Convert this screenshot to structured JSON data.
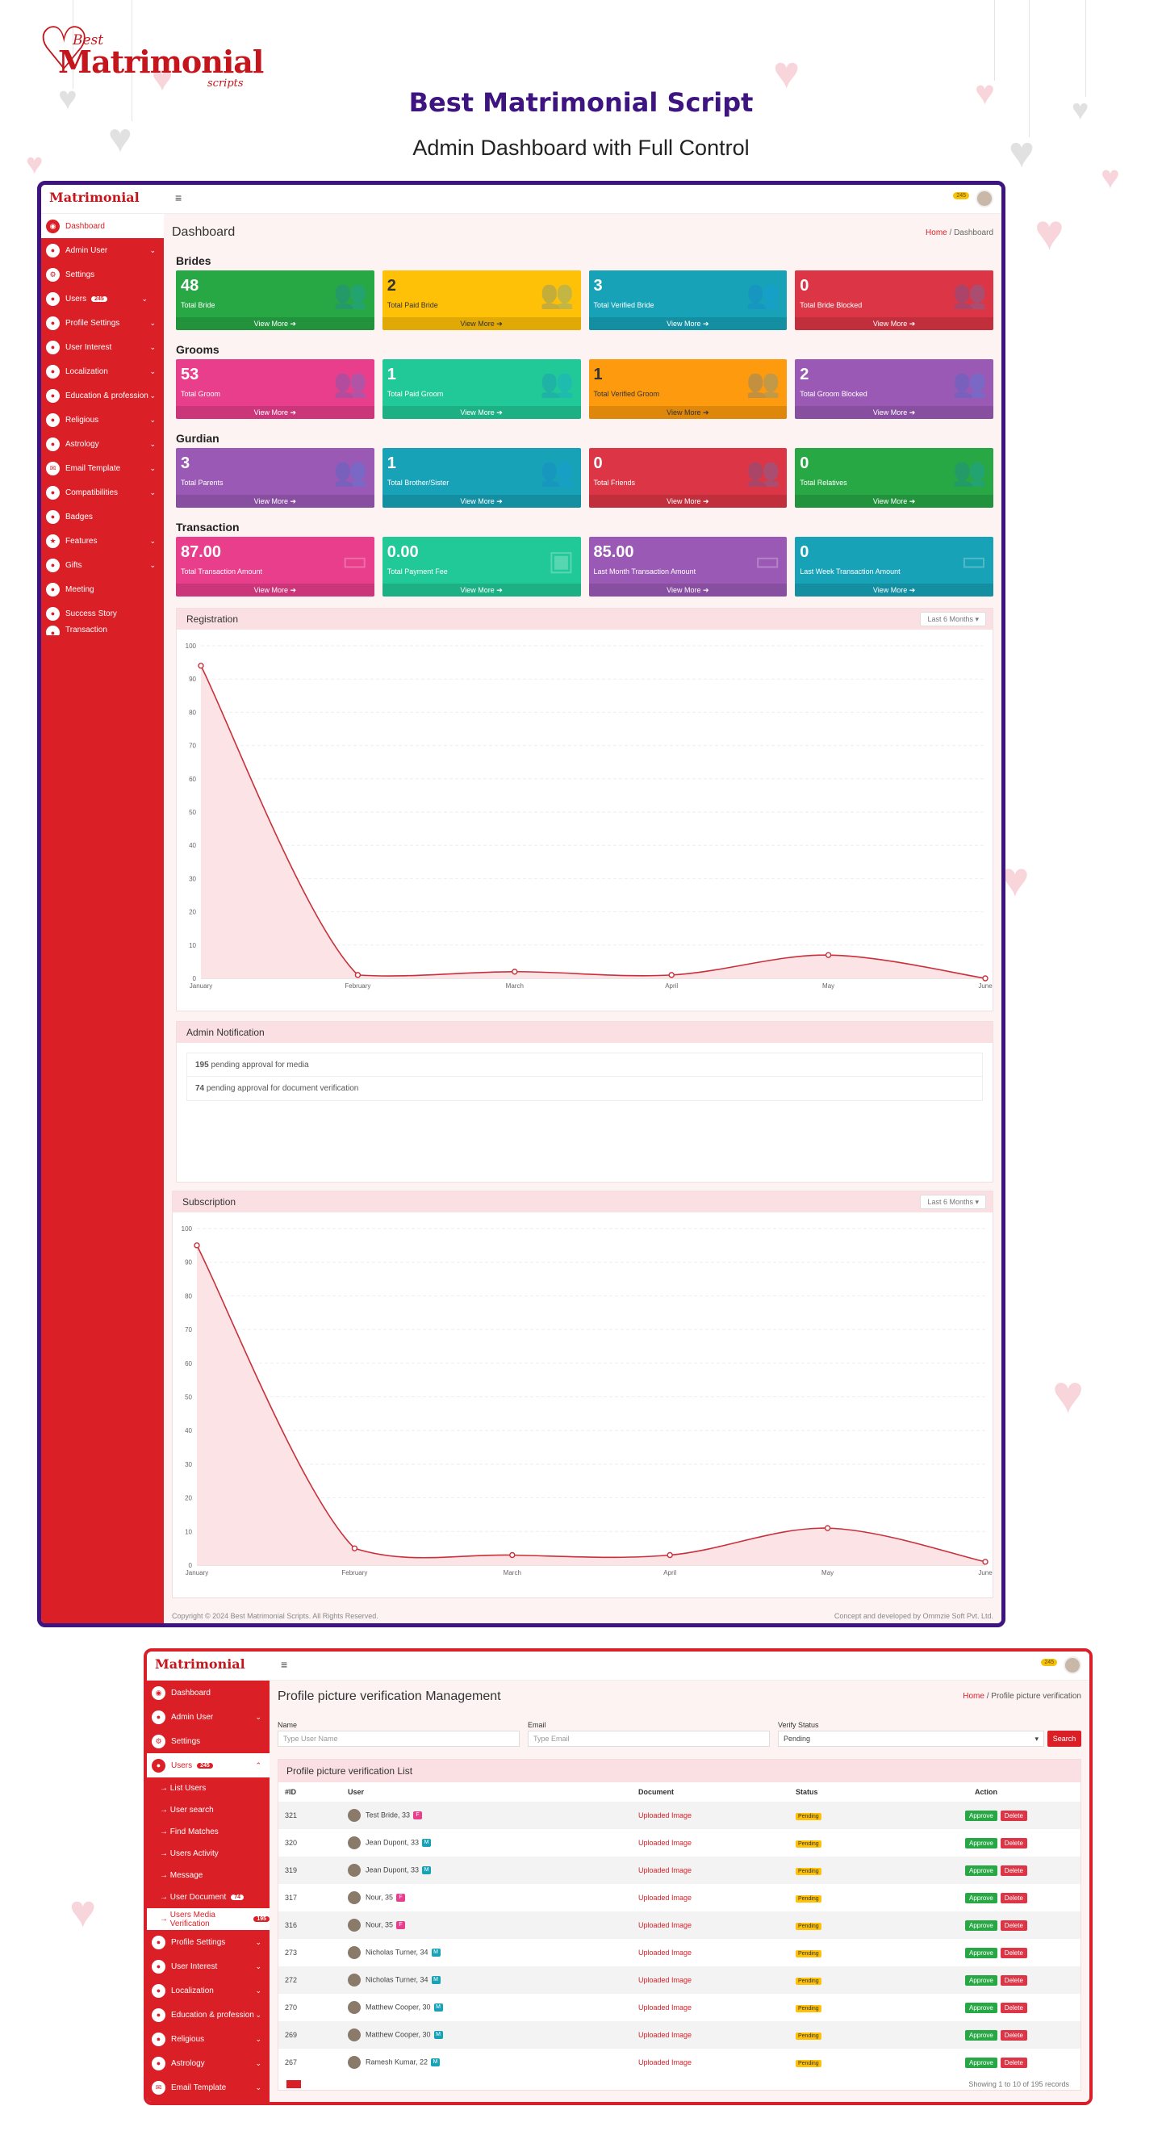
{
  "colors": {
    "brand": "#da1f27",
    "heading": "#3d1480"
  },
  "promo": {
    "logo_top": "Best",
    "logo_main": "Matrimonial",
    "logo_sub": "scripts",
    "title": "Best Matrimonial Script",
    "subtitle": "Admin Dashboard with Full Control"
  },
  "sidebar1": {
    "logo": "Matrimonial",
    "items": [
      {
        "label": "Dashboard"
      },
      {
        "label": "Admin User"
      },
      {
        "label": "Settings"
      },
      {
        "label": "Users",
        "badge": "245"
      },
      {
        "label": "Profile Settings"
      },
      {
        "label": "User Interest"
      },
      {
        "label": "Localization"
      },
      {
        "label": "Education & profession"
      },
      {
        "label": "Religious"
      },
      {
        "label": "Astrology"
      },
      {
        "label": "Email Template"
      },
      {
        "label": "Compatibilities"
      },
      {
        "label": "Badges"
      },
      {
        "label": "Features"
      },
      {
        "label": "Gifts"
      },
      {
        "label": "Meeting"
      },
      {
        "label": "Success Story"
      },
      {
        "label": "Transaction"
      }
    ]
  },
  "dashboard": {
    "notif_count": "245",
    "title": "Dashboard",
    "crumb_home": "Home",
    "crumb_current": "Dashboard",
    "view_more": "View More",
    "sections": [
      {
        "title": "Brides",
        "cards": [
          {
            "value": "48",
            "label": "Total Bride"
          },
          {
            "value": "2",
            "label": "Total Paid Bride"
          },
          {
            "value": "3",
            "label": "Total Verified Bride"
          },
          {
            "value": "0",
            "label": "Total Bride Blocked"
          }
        ]
      },
      {
        "title": "Grooms",
        "cards": [
          {
            "value": "53",
            "label": "Total Groom"
          },
          {
            "value": "1",
            "label": "Total Paid Groom"
          },
          {
            "value": "1",
            "label": "Total Verified Groom"
          },
          {
            "value": "2",
            "label": "Total Groom Blocked"
          }
        ]
      },
      {
        "title": "Gurdian",
        "cards": [
          {
            "value": "3",
            "label": "Total Parents"
          },
          {
            "value": "1",
            "label": "Total Brother/Sister"
          },
          {
            "value": "0",
            "label": "Total Friends"
          },
          {
            "value": "0",
            "label": "Total Relatives"
          }
        ]
      },
      {
        "title": "Transaction",
        "cards": [
          {
            "value": "87.00",
            "label": "Total Transaction Amount"
          },
          {
            "value": "0.00",
            "label": "Total Payment Fee"
          },
          {
            "value": "85.00",
            "label": "Last Month Transaction Amount"
          },
          {
            "value": "0",
            "label": "Last Week Transaction Amount"
          }
        ]
      }
    ],
    "registration": {
      "title": "Registration",
      "range": "Last 6 Months"
    },
    "notifications": {
      "title": "Admin Notification",
      "rows": [
        {
          "count": "195",
          "text": "pending approval for media"
        },
        {
          "count": "74",
          "text": "pending approval for document verification"
        }
      ]
    },
    "subscription": {
      "title": "Subscription",
      "range": "Last 6 Months"
    },
    "footer_left": "Copyright © 2024 Best Matrimonial Scripts. All Rights Reserved.",
    "footer_right": "Concept and developed by Ommzie Soft Pvt. Ltd."
  },
  "chart_data": [
    {
      "type": "area",
      "title": "Registration",
      "categories": [
        "January",
        "February",
        "March",
        "April",
        "May",
        "June"
      ],
      "values": [
        94,
        1,
        2,
        1,
        7,
        0
      ],
      "ylim": [
        0,
        100
      ],
      "yticks": [
        "0",
        "10",
        "20",
        "30",
        "40",
        "50",
        "60",
        "70",
        "80",
        "90",
        "100"
      ]
    },
    {
      "type": "area",
      "title": "Subscription",
      "categories": [
        "January",
        "February",
        "March",
        "April",
        "May",
        "June"
      ],
      "values": [
        95,
        5,
        3,
        3,
        11,
        1
      ],
      "ylim": [
        0,
        100
      ],
      "yticks": [
        "0",
        "10",
        "20",
        "30",
        "40",
        "50",
        "60",
        "70",
        "80",
        "90",
        "100"
      ]
    }
  ],
  "sidebar2": {
    "logo": "Matrimonial",
    "items": [
      {
        "label": "Dashboard"
      },
      {
        "label": "Admin User"
      },
      {
        "label": "Settings"
      },
      {
        "label": "Users",
        "badge": "245"
      }
    ],
    "subitems": [
      {
        "label": "List Users"
      },
      {
        "label": "User search"
      },
      {
        "label": "Find Matches"
      },
      {
        "label": "Users Activity"
      },
      {
        "label": "Message"
      },
      {
        "label": "User Document",
        "badge": "74"
      },
      {
        "label": "Users Media Verification",
        "badge": "195"
      }
    ],
    "items_after": [
      {
        "label": "Profile Settings"
      },
      {
        "label": "User Interest"
      },
      {
        "label": "Localization"
      },
      {
        "label": "Education & profession"
      },
      {
        "label": "Religious"
      },
      {
        "label": "Astrology"
      },
      {
        "label": "Email Template"
      }
    ]
  },
  "verification": {
    "notif_count": "245",
    "title": "Profile picture verification Management",
    "crumb_home": "Home",
    "crumb_current": "Profile picture verification",
    "filters": {
      "name_label": "Name",
      "name_placeholder": "Type User Name",
      "email_label": "Email",
      "email_placeholder": "Type Email",
      "status_label": "Verify Status",
      "status_value": "Pending",
      "search": "Search"
    },
    "list_title": "Profile picture verification List",
    "columns": [
      "#ID",
      "User",
      "Document",
      "Status",
      "Action"
    ],
    "doc_text": "Uploaded Image",
    "status_text": "Pending",
    "approve": "Approve",
    "delete": "Delete",
    "rows": [
      {
        "id": "321",
        "user": "Test Bride, 33",
        "g": "F"
      },
      {
        "id": "320",
        "user": "Jean Dupont, 33",
        "g": "M"
      },
      {
        "id": "319",
        "user": "Jean Dupont, 33",
        "g": "M"
      },
      {
        "id": "317",
        "user": "Nour, 35",
        "g": "F"
      },
      {
        "id": "316",
        "user": "Nour, 35",
        "g": "F"
      },
      {
        "id": "273",
        "user": "Nicholas Turner, 34",
        "g": "M"
      },
      {
        "id": "272",
        "user": "Nicholas Turner, 34",
        "g": "M"
      },
      {
        "id": "270",
        "user": "Matthew Cooper, 30",
        "g": "M"
      },
      {
        "id": "269",
        "user": "Matthew Cooper, 30",
        "g": "M"
      },
      {
        "id": "267",
        "user": "Ramesh Kumar, 22",
        "g": "M"
      }
    ],
    "showing": "Showing 1 to 10 of 195 records"
  }
}
